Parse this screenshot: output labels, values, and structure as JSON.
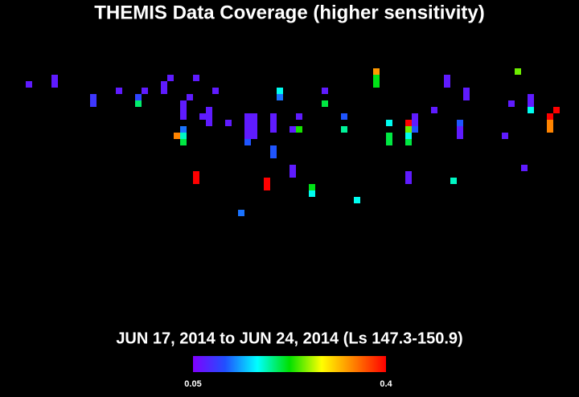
{
  "chart_data": {
    "type": "heatmap",
    "title": "THEMIS Data Coverage (higher sensitivity)",
    "subtitle": "JUN 17, 2014 to JUN 24, 2014 (Ls 147.3-150.9)",
    "xlim": [
      0,
      90
    ],
    "ylim": [
      0,
      60
    ],
    "x": [
      4,
      8,
      8,
      14,
      14,
      18,
      21,
      21,
      22,
      25,
      25,
      26,
      30,
      29,
      28,
      28,
      28,
      28,
      28,
      28,
      27,
      31,
      32,
      32,
      32,
      30,
      30,
      33,
      35,
      37,
      38,
      38,
      38,
      38,
      38,
      39,
      39,
      39,
      39,
      42,
      42,
      42,
      42,
      42,
      41,
      41,
      43,
      43,
      45,
      45,
      46,
      45,
      46,
      48,
      48,
      50,
      50,
      53,
      53,
      55,
      58,
      58,
      58,
      60,
      60,
      60,
      63,
      63,
      63,
      63,
      64,
      64,
      64,
      63,
      63,
      67,
      69,
      69,
      70,
      71,
      71,
      71,
      72,
      72,
      78,
      79,
      80,
      81,
      82,
      82,
      82,
      85,
      85,
      85,
      86
    ],
    "y": [
      12,
      11,
      12,
      14,
      15,
      13,
      14,
      15,
      13,
      12,
      13,
      11,
      11,
      14,
      15,
      16,
      17,
      19,
      20,
      21,
      20,
      17,
      16,
      17,
      18,
      26,
      27,
      13,
      18,
      32,
      17,
      18,
      19,
      20,
      21,
      17,
      18,
      19,
      20,
      17,
      18,
      19,
      22,
      23,
      27,
      28,
      13,
      14,
      25,
      26,
      17,
      19,
      19,
      28,
      29,
      13,
      15,
      17,
      19,
      30,
      10,
      11,
      12,
      18,
      20,
      21,
      18,
      19,
      20,
      21,
      17,
      18,
      19,
      26,
      27,
      16,
      11,
      12,
      27,
      18,
      19,
      20,
      13,
      14,
      20,
      15,
      10,
      25,
      14,
      15,
      16,
      17,
      18,
      19,
      16
    ],
    "values": [
      0.07,
      0.07,
      0.07,
      0.09,
      0.09,
      0.07,
      0.1,
      0.2,
      0.07,
      0.07,
      0.07,
      0.07,
      0.07,
      0.07,
      0.07,
      0.07,
      0.07,
      0.12,
      0.18,
      0.21,
      0.34,
      0.07,
      0.07,
      0.07,
      0.07,
      0.4,
      0.4,
      0.07,
      0.07,
      0.12,
      0.07,
      0.07,
      0.07,
      0.07,
      0.11,
      0.07,
      0.07,
      0.07,
      0.07,
      0.07,
      0.07,
      0.07,
      0.11,
      0.11,
      0.4,
      0.4,
      0.17,
      0.12,
      0.07,
      0.07,
      0.07,
      0.07,
      0.23,
      0.22,
      0.17,
      0.07,
      0.21,
      0.11,
      0.19,
      0.17,
      0.33,
      0.22,
      0.22,
      0.17,
      0.21,
      0.21,
      0.4,
      0.25,
      0.17,
      0.21,
      0.07,
      0.07,
      0.11,
      0.07,
      0.07,
      0.07,
      0.07,
      0.07,
      0.18,
      0.11,
      0.07,
      0.07,
      0.07,
      0.07,
      0.07,
      0.07,
      0.25,
      0.07,
      0.07,
      0.07,
      0.17,
      0.4,
      0.34,
      0.34,
      0.4
    ],
    "clim": [
      0.05,
      0.4
    ],
    "colorbar_labels": [
      "0.05",
      "0.4"
    ],
    "colormap": [
      "#8000ff",
      "#2050ff",
      "#00ffff",
      "#00e000",
      "#ffff00",
      "#ff8000",
      "#ff0000"
    ]
  }
}
